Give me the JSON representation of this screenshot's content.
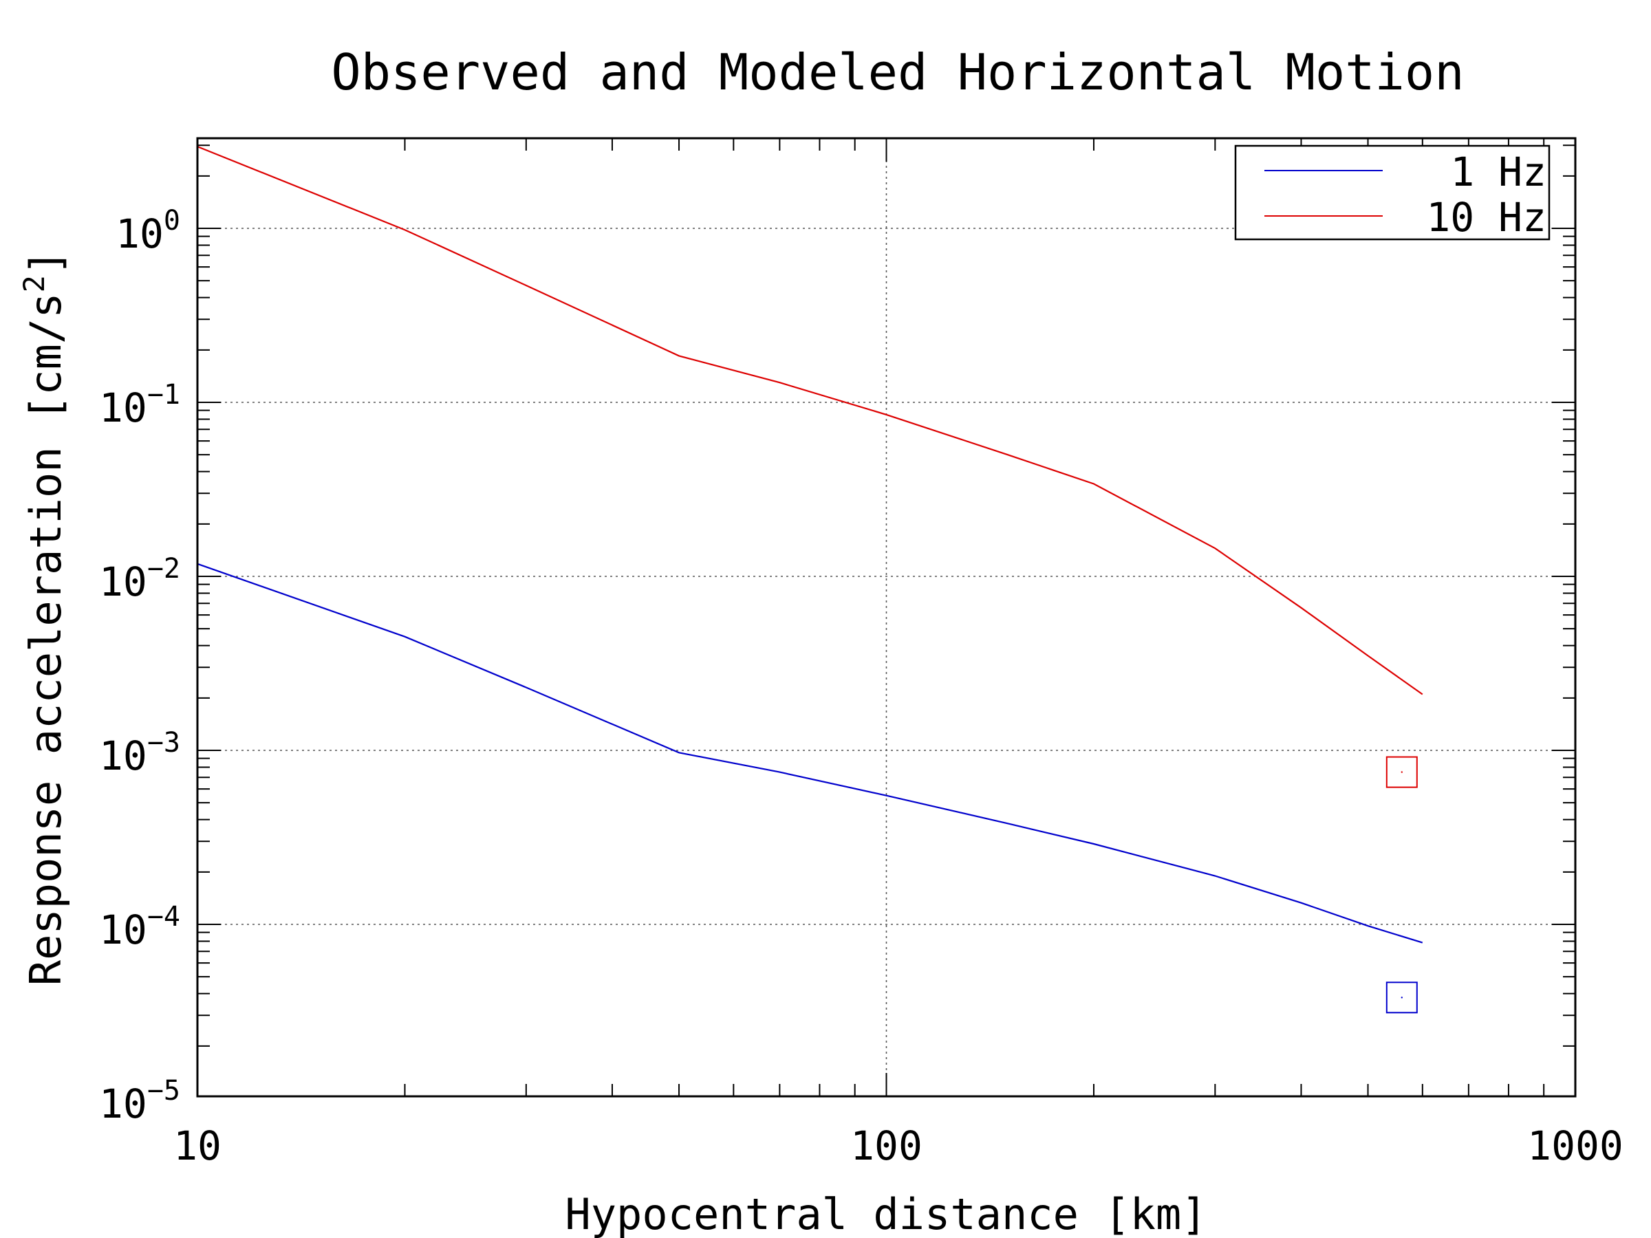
{
  "chart_data": {
    "type": "line",
    "title": "Observed and Modeled Horizontal Motion",
    "xlabel": "Hypocentral distance [km]",
    "ylabel_base": "Response acceleration [cm/s",
    "ylabel_sup": "2",
    "ylabel_tail": "]",
    "xscale": "log",
    "yscale": "log",
    "xlim": [
      10,
      1000
    ],
    "ylim": [
      1e-05,
      3.3
    ],
    "x_ticks": [
      {
        "value": 10,
        "label": "10"
      },
      {
        "value": 100,
        "label": "100"
      },
      {
        "value": 1000,
        "label": "1000"
      }
    ],
    "y_ticks": [
      {
        "value": 1,
        "base": "10",
        "exp": "0"
      },
      {
        "value": 0.1,
        "base": "10",
        "exp": "−1"
      },
      {
        "value": 0.01,
        "base": "10",
        "exp": "−2"
      },
      {
        "value": 0.001,
        "base": "10",
        "exp": "−3"
      },
      {
        "value": 0.0001,
        "base": "10",
        "exp": "−4"
      },
      {
        "value": 1e-05,
        "base": "10",
        "exp": "−5"
      }
    ],
    "grid": true,
    "legend_position": "top-right",
    "series": [
      {
        "name": "1 Hz",
        "color": "#0000cc",
        "x": [
          10,
          20,
          30,
          50,
          70,
          100,
          150,
          200,
          300,
          400,
          500,
          600
        ],
        "y": [
          0.0118,
          0.0045,
          0.0023,
          0.00097,
          0.00075,
          0.00055,
          0.00038,
          0.00029,
          0.00019,
          0.000133,
          9.8e-05,
          7.85e-05
        ]
      },
      {
        "name": "10 Hz",
        "color": "#dd0000",
        "x": [
          10,
          20,
          30,
          50,
          70,
          100,
          150,
          200,
          300,
          400,
          500,
          600
        ],
        "y": [
          2.95,
          0.98,
          0.47,
          0.185,
          0.13,
          0.085,
          0.05,
          0.034,
          0.0145,
          0.0066,
          0.0035,
          0.0021
        ]
      }
    ],
    "observed": [
      {
        "series": "10 Hz",
        "color": "#dd0000",
        "x": 560,
        "y": 0.00075
      },
      {
        "series": "1 Hz",
        "color": "#0000cc",
        "x": 560,
        "y": 3.8e-05
      }
    ]
  }
}
